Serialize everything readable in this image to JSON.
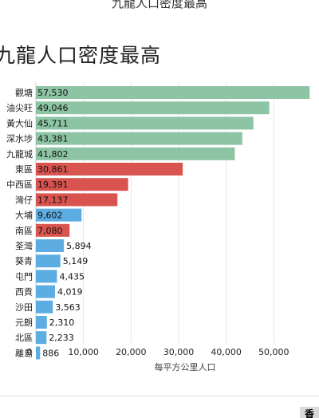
{
  "header": {
    "top_title": "九龍人口密度最高",
    "corner_text": "香"
  },
  "chart_data": {
    "type": "bar",
    "orientation": "horizontal",
    "title": "九龍人口密度最高",
    "xlabel": "每平方公里人口",
    "ylabel": "",
    "xlim": [
      0,
      59500
    ],
    "xticks": [
      0,
      10000,
      20000,
      30000,
      40000,
      50000
    ],
    "xtick_labels": [
      "0",
      "10,000",
      "20,000",
      "30,000",
      "40,000",
      "50,000"
    ],
    "grid": true,
    "colors": {
      "kowloon": "#8cc4a4",
      "hk_island": "#d9534f",
      "nt": "#5dade2",
      "grid": "#e6e6e6"
    },
    "categories": [
      "觀塘",
      "油尖旺",
      "黃大仙",
      "深水埗",
      "九龍城",
      "東區",
      "中西區",
      "灣仔",
      "大埔",
      "南區",
      "荃灣",
      "葵青",
      "屯門",
      "西貢",
      "沙田",
      "元朗",
      "北區",
      "離島"
    ],
    "values": [
      57530,
      49046,
      45711,
      43381,
      41802,
      30861,
      19391,
      17137,
      9602,
      7080,
      5894,
      5149,
      4435,
      4019,
      3563,
      2310,
      2233,
      886
    ],
    "value_labels": [
      "57,530",
      "49,046",
      "45,711",
      "43,381",
      "41,802",
      "30,861",
      "19,391",
      "17,137",
      "9,602",
      "7,080",
      "5,894",
      "5,149",
      "4,435",
      "4,019",
      "3,563",
      "2,310",
      "2,233",
      "886"
    ],
    "groups": [
      "kowloon",
      "kowloon",
      "kowloon",
      "kowloon",
      "kowloon",
      "hk_island",
      "hk_island",
      "hk_island",
      "nt",
      "hk_island",
      "nt",
      "nt",
      "nt",
      "nt",
      "nt",
      "nt",
      "nt",
      "nt"
    ]
  }
}
